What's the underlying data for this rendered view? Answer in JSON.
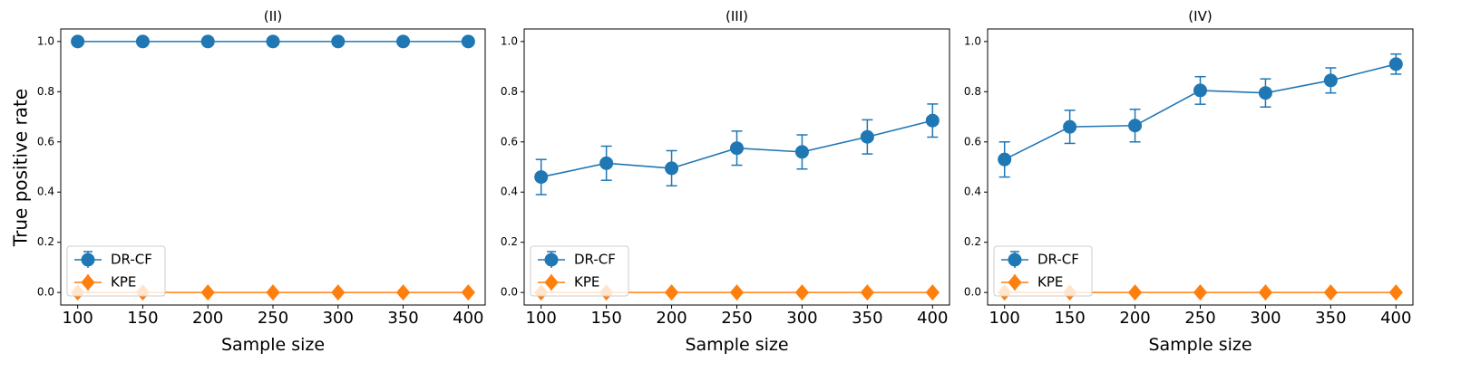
{
  "colors": {
    "dr_cf": "#1f77b4",
    "kpe": "#ff7f0e",
    "frame": "#000000"
  },
  "ylabel": "True positive rate",
  "chart_data": [
    {
      "type": "line",
      "title": "(II)",
      "xlabel": "Sample size",
      "ylim": [
        -0.05,
        1.05
      ],
      "xlim": [
        87,
        413
      ],
      "x": [
        100,
        150,
        200,
        250,
        300,
        350,
        400
      ],
      "xticks": [
        100,
        150,
        200,
        250,
        300,
        350,
        400
      ],
      "yticks": [
        "0.0",
        "0.2",
        "0.4",
        "0.6",
        "0.8",
        "1.0"
      ],
      "legend": "lower-left",
      "series": [
        {
          "name": "DR-CF",
          "marker": "circle",
          "values": [
            1.0,
            1.0,
            1.0,
            1.0,
            1.0,
            1.0,
            1.0
          ],
          "err": [
            0,
            0,
            0,
            0,
            0,
            0,
            0
          ]
        },
        {
          "name": "KPE",
          "marker": "diamond",
          "values": [
            0,
            0,
            0,
            0,
            0,
            0,
            0
          ],
          "err": [
            0,
            0,
            0,
            0,
            0,
            0,
            0
          ]
        }
      ]
    },
    {
      "type": "line",
      "title": "(III)",
      "xlabel": "Sample size",
      "ylim": [
        -0.05,
        1.05
      ],
      "xlim": [
        87,
        413
      ],
      "x": [
        100,
        150,
        200,
        250,
        300,
        350,
        400
      ],
      "xticks": [
        100,
        150,
        200,
        250,
        300,
        350,
        400
      ],
      "yticks": [
        "0.0",
        "0.2",
        "0.4",
        "0.6",
        "0.8",
        "1.0"
      ],
      "legend": "lower-left",
      "series": [
        {
          "name": "DR-CF",
          "marker": "circle",
          "values": [
            0.46,
            0.515,
            0.495,
            0.575,
            0.56,
            0.62,
            0.685
          ],
          "err": [
            0.07,
            0.068,
            0.07,
            0.068,
            0.068,
            0.068,
            0.066
          ]
        },
        {
          "name": "KPE",
          "marker": "diamond",
          "values": [
            0,
            0,
            0,
            0,
            0,
            0,
            0
          ],
          "err": [
            0,
            0,
            0,
            0,
            0,
            0,
            0
          ]
        }
      ]
    },
    {
      "type": "line",
      "title": "(IV)",
      "xlabel": "Sample size",
      "ylim": [
        -0.05,
        1.05
      ],
      "xlim": [
        87,
        413
      ],
      "x": [
        100,
        150,
        200,
        250,
        300,
        350,
        400
      ],
      "xticks": [
        100,
        150,
        200,
        250,
        300,
        350,
        400
      ],
      "yticks": [
        "0.0",
        "0.2",
        "0.4",
        "0.6",
        "0.8",
        "1.0"
      ],
      "legend": "lower-left",
      "series": [
        {
          "name": "DR-CF",
          "marker": "circle",
          "values": [
            0.53,
            0.66,
            0.665,
            0.805,
            0.795,
            0.845,
            0.91
          ],
          "err": [
            0.07,
            0.066,
            0.065,
            0.055,
            0.056,
            0.05,
            0.04
          ]
        },
        {
          "name": "KPE",
          "marker": "diamond",
          "values": [
            0,
            0,
            0,
            0,
            0,
            0,
            0
          ],
          "err": [
            0,
            0,
            0,
            0,
            0,
            0,
            0
          ]
        }
      ]
    }
  ]
}
